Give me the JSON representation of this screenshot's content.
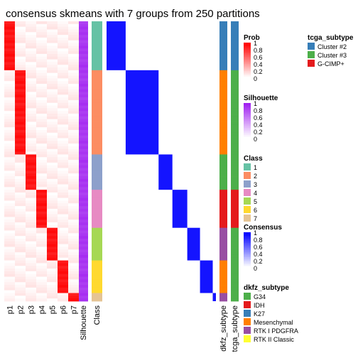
{
  "chart_data": {
    "type": "heatmap",
    "title": "consensus skmeans with 7 groups from 250 partitions",
    "columns": {
      "probability": [
        "p1",
        "p2",
        "p3",
        "p4",
        "p5",
        "p6",
        "p7"
      ],
      "silhouette": "Silhouette",
      "class": "Class",
      "dkfz": "dkfz_subtype",
      "tcga": "tcga_subtype"
    },
    "groups": [
      {
        "class": "1",
        "samples": 18
      },
      {
        "class": "2",
        "samples": 31
      },
      {
        "class": "3",
        "samples": 13
      },
      {
        "class": "4",
        "samples": 14
      },
      {
        "class": "5",
        "samples": 12
      },
      {
        "class": "6",
        "samples": 12
      },
      {
        "class": "7",
        "samples": 3
      }
    ],
    "legends": {
      "prob": {
        "title": "Prob",
        "ticks": [
          "1",
          "0.8",
          "0.6",
          "0.4",
          "0.2",
          "0"
        ],
        "low": "#ffffff",
        "high": "#ff0000"
      },
      "silhouette": {
        "title": "Silhouette",
        "ticks": [
          "1",
          "0.8",
          "0.6",
          "0.4",
          "0.2",
          "0"
        ],
        "low": "#ffffff",
        "high": "#a020f0"
      },
      "class": {
        "title": "Class",
        "items": [
          {
            "label": "1",
            "color": "#66C2A5"
          },
          {
            "label": "2",
            "color": "#FC8D62"
          },
          {
            "label": "3",
            "color": "#8DA0CB"
          },
          {
            "label": "4",
            "color": "#E78AC3"
          },
          {
            "label": "5",
            "color": "#A6D854"
          },
          {
            "label": "6",
            "color": "#FFD92F"
          },
          {
            "label": "7",
            "color": "#E5C494"
          }
        ]
      },
      "consensus": {
        "title": "Consensus",
        "ticks": [
          "1",
          "0.8",
          "0.6",
          "0.4",
          "0.2",
          "0"
        ],
        "low": "#ffffff",
        "high": "#0000ff"
      },
      "dkfz": {
        "title": "dkfz_subtype",
        "items": [
          {
            "label": "G34",
            "color": "#4DAF4A"
          },
          {
            "label": "IDH",
            "color": "#E41A1C"
          },
          {
            "label": "K27",
            "color": "#377EB8"
          },
          {
            "label": "Mesenchymal",
            "color": "#FF7F00"
          },
          {
            "label": "RTK I PDGFRA",
            "color": "#984EA3"
          },
          {
            "label": "RTK II Classic",
            "color": "#FFFF33"
          }
        ]
      },
      "tcga": {
        "title": "tcga_subtype",
        "items": [
          {
            "label": "Cluster #2",
            "color": "#377EB8"
          },
          {
            "label": "Cluster #3",
            "color": "#4DAF4A"
          },
          {
            "label": "G-CIMP+",
            "color": "#E41A1C"
          }
        ]
      }
    }
  }
}
